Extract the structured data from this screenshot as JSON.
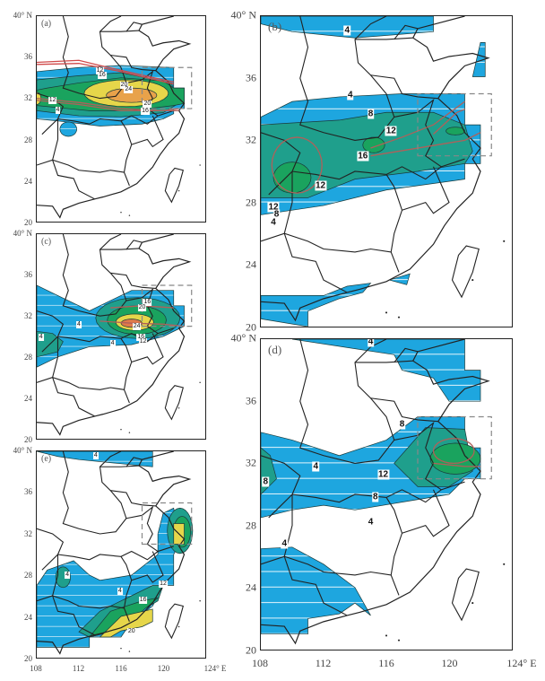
{
  "colors": {
    "blue": "#1ea6df",
    "teal": "#1f9f8c",
    "green": "#1aa35e",
    "yellow": "#e6d64a",
    "orange": "#e8a24a",
    "core": "#e07a4a",
    "red_line": "#d04a4a",
    "brown_line": "#b0605a",
    "box": "#888888"
  },
  "panels": {
    "a": {
      "label": "(a)",
      "contour_labels": [
        "12",
        "16",
        "20",
        "24",
        "20",
        "16",
        "12",
        "4"
      ]
    },
    "b": {
      "label": "(b)",
      "contour_labels": [
        "4",
        "4",
        "8",
        "12",
        "16",
        "12",
        "12",
        "8",
        "4"
      ]
    },
    "c": {
      "label": "(c)",
      "contour_labels": [
        "4",
        "16",
        "20",
        "24",
        "16",
        "12",
        "4",
        "4"
      ]
    },
    "d": {
      "label": "(d)",
      "contour_labels": [
        "4",
        "8",
        "4",
        "12",
        "8",
        "4",
        "4",
        "8"
      ]
    },
    "e": {
      "label": "(e)",
      "contour_labels": [
        "4",
        "4",
        "4",
        "12",
        "16",
        "20"
      ]
    }
  },
  "axes": {
    "small_lat_ticks": [
      "40° N",
      "36",
      "32",
      "28",
      "24",
      "20"
    ],
    "big_lat_ticks": [
      "40° N",
      "36",
      "32",
      "28",
      "24",
      "20"
    ],
    "small_lon_ticks": [
      "108",
      "112",
      "116",
      "120",
      "124° E"
    ],
    "big_lon_ticks": [
      "108",
      "112",
      "116",
      "120",
      "124° E"
    ]
  }
}
